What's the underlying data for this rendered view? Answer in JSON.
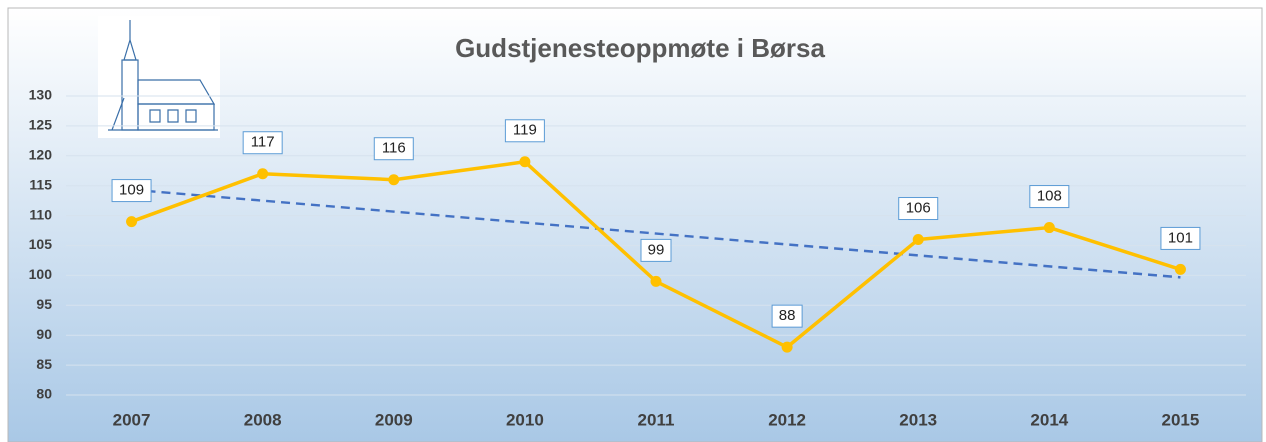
{
  "chart_data": {
    "type": "line",
    "title": "Gudstjenesteoppmøte i Børsa",
    "categories": [
      "2007",
      "2008",
      "2009",
      "2010",
      "2011",
      "2012",
      "2013",
      "2014",
      "2015"
    ],
    "values": [
      109,
      117,
      116,
      119,
      99,
      88,
      106,
      108,
      101
    ],
    "color": "#ffc000",
    "trendline": true,
    "trendline_color": "#4472c4",
    "ylim": [
      80,
      130
    ],
    "yticks": [
      80,
      85,
      90,
      95,
      100,
      105,
      110,
      115,
      120,
      125,
      130
    ],
    "grid": true
  }
}
